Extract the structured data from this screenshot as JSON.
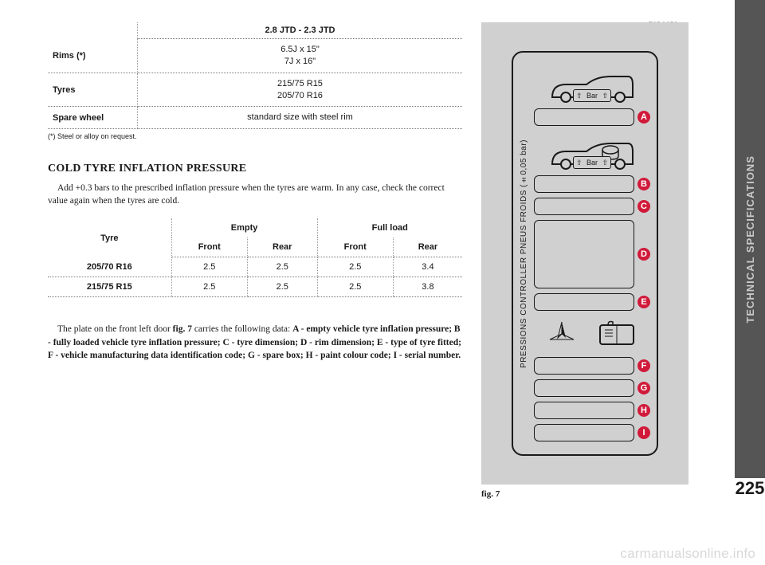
{
  "side_tab": "TECHNICAL  SPECIFICATIONS",
  "page_number": "225",
  "watermark": "carmanualsonline.info",
  "table1": {
    "header": "2.8 JTD - 2.3 JTD",
    "rows": [
      {
        "label": "Rims (*)",
        "value": "6.5J x 15\"\n7J x 16\""
      },
      {
        "label": "Tyres",
        "value": "215/75 R15\n205/70 R16"
      },
      {
        "label": "Spare wheel",
        "value": "standard size with steel rim"
      }
    ],
    "footnote": "(*) Steel or alloy on request."
  },
  "cold_heading": "COLD TYRE INFLATION PRESSURE",
  "cold_para": "Add +0.3 bars to the prescribed inflation pressure when the tyres are warm. In any case, check the correct value again when the tyres are cold.",
  "table2": {
    "col_tyre": "Tyre",
    "group_empty": "Empty",
    "group_full": "Full load",
    "sub_front": "Front",
    "sub_rear": "Rear",
    "rows": [
      {
        "tyre": "205/70 R16",
        "ef": "2.5",
        "er": "2.5",
        "ff": "2.5",
        "fr": "3.4"
      },
      {
        "tyre": "215/75 R15",
        "ef": "2.5",
        "er": "2.5",
        "ff": "2.5",
        "fr": "3.8"
      }
    ]
  },
  "bottom_para_pre": "The plate on the front left door ",
  "bottom_fig_ref": "fig. 7",
  "bottom_para_mid": " carries the following data: ",
  "legend": {
    "A": "A - empty vehicle tyre inflation pressure; ",
    "B": "B - fully loaded vehicle tyre inflation pressure; ",
    "C": "C - tyre dimension; ",
    "D": "D - rim dimension; ",
    "E": "E - type of tyre fitted; ",
    "F": "F - vehicle manufacturing data identification code; ",
    "G": "G - spare box; ",
    "H": "H - paint colour code; ",
    "I": "I - serial number."
  },
  "figure": {
    "top_label": "F0D0258m",
    "vertical_text": "PRESSIONS CONTROLLER PNEUS FROIDS (±0,05 bar)",
    "bar_label": "Bar",
    "badges": [
      "A",
      "B",
      "C",
      "D",
      "E",
      "F",
      "G",
      "H",
      "I"
    ],
    "caption": "fig. 7",
    "badge_color": "#d11a3a",
    "panel_bg": "#d0d0d0"
  }
}
